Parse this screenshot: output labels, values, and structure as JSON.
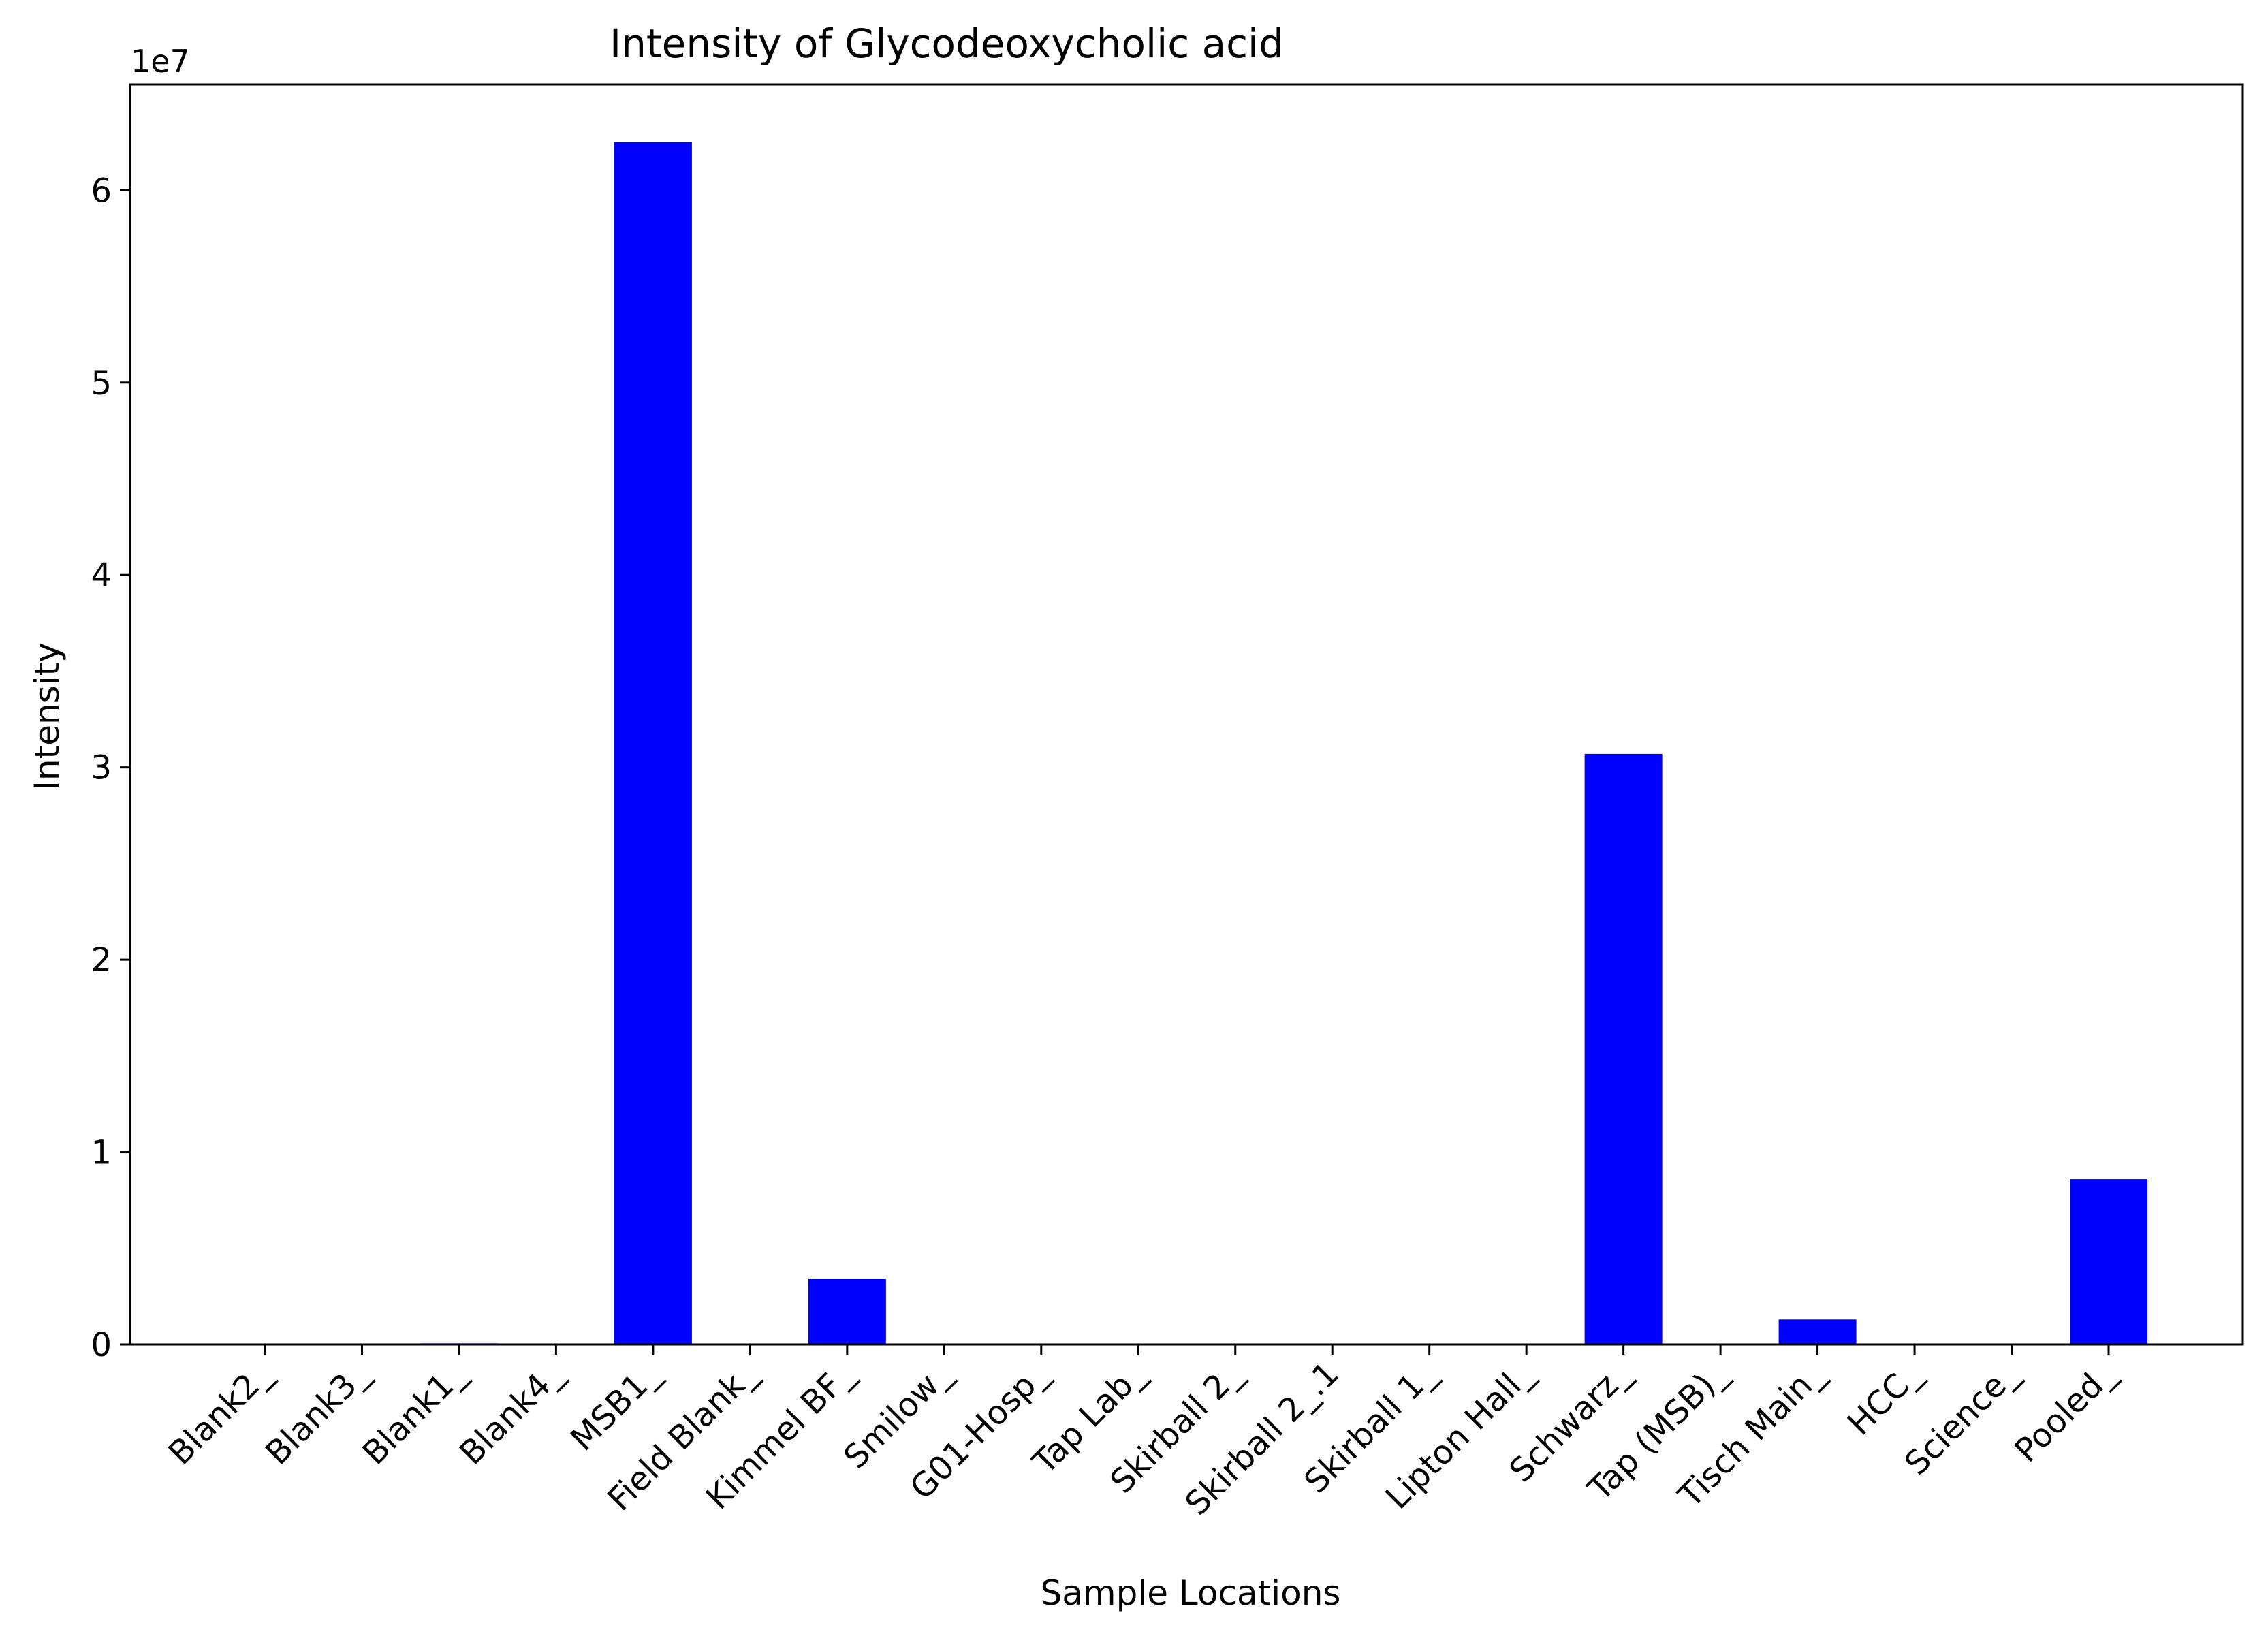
{
  "chart_data": {
    "type": "bar",
    "title": "Intensity of Glycodeoxycholic acid",
    "xlabel": "Sample Locations",
    "ylabel": "Intensity",
    "y_scale_label": "1e7",
    "ylim": [
      0,
      65500000
    ],
    "yticks": [
      0,
      10000000,
      20000000,
      30000000,
      40000000,
      50000000,
      60000000
    ],
    "ytick_labels": [
      "0",
      "1",
      "2",
      "3",
      "4",
      "5",
      "6"
    ],
    "categories": [
      "Blank2_",
      "Blank3_",
      "Blank1_",
      "Blank4_",
      "MSB1_",
      "Field Blank_",
      "Kimmel BF_",
      "Smilow_",
      "G01-Hosp_",
      "Tap Lab_",
      "Skirball 2_",
      "Skirball 2_.1",
      "Skirball 1_",
      "Lipton Hall_",
      "Schwarz_",
      "Tap (MSB)_",
      "Tisch Main_",
      "HCC_",
      "Science_",
      "Pooled_"
    ],
    "values": [
      0,
      0,
      60000,
      0,
      62500000,
      0,
      3400000,
      0,
      0,
      0,
      0,
      0,
      0,
      0,
      30700000,
      0,
      1300000,
      0,
      0,
      8600000
    ],
    "bar_color": "#0000ff",
    "grid": false,
    "legend": "none"
  }
}
